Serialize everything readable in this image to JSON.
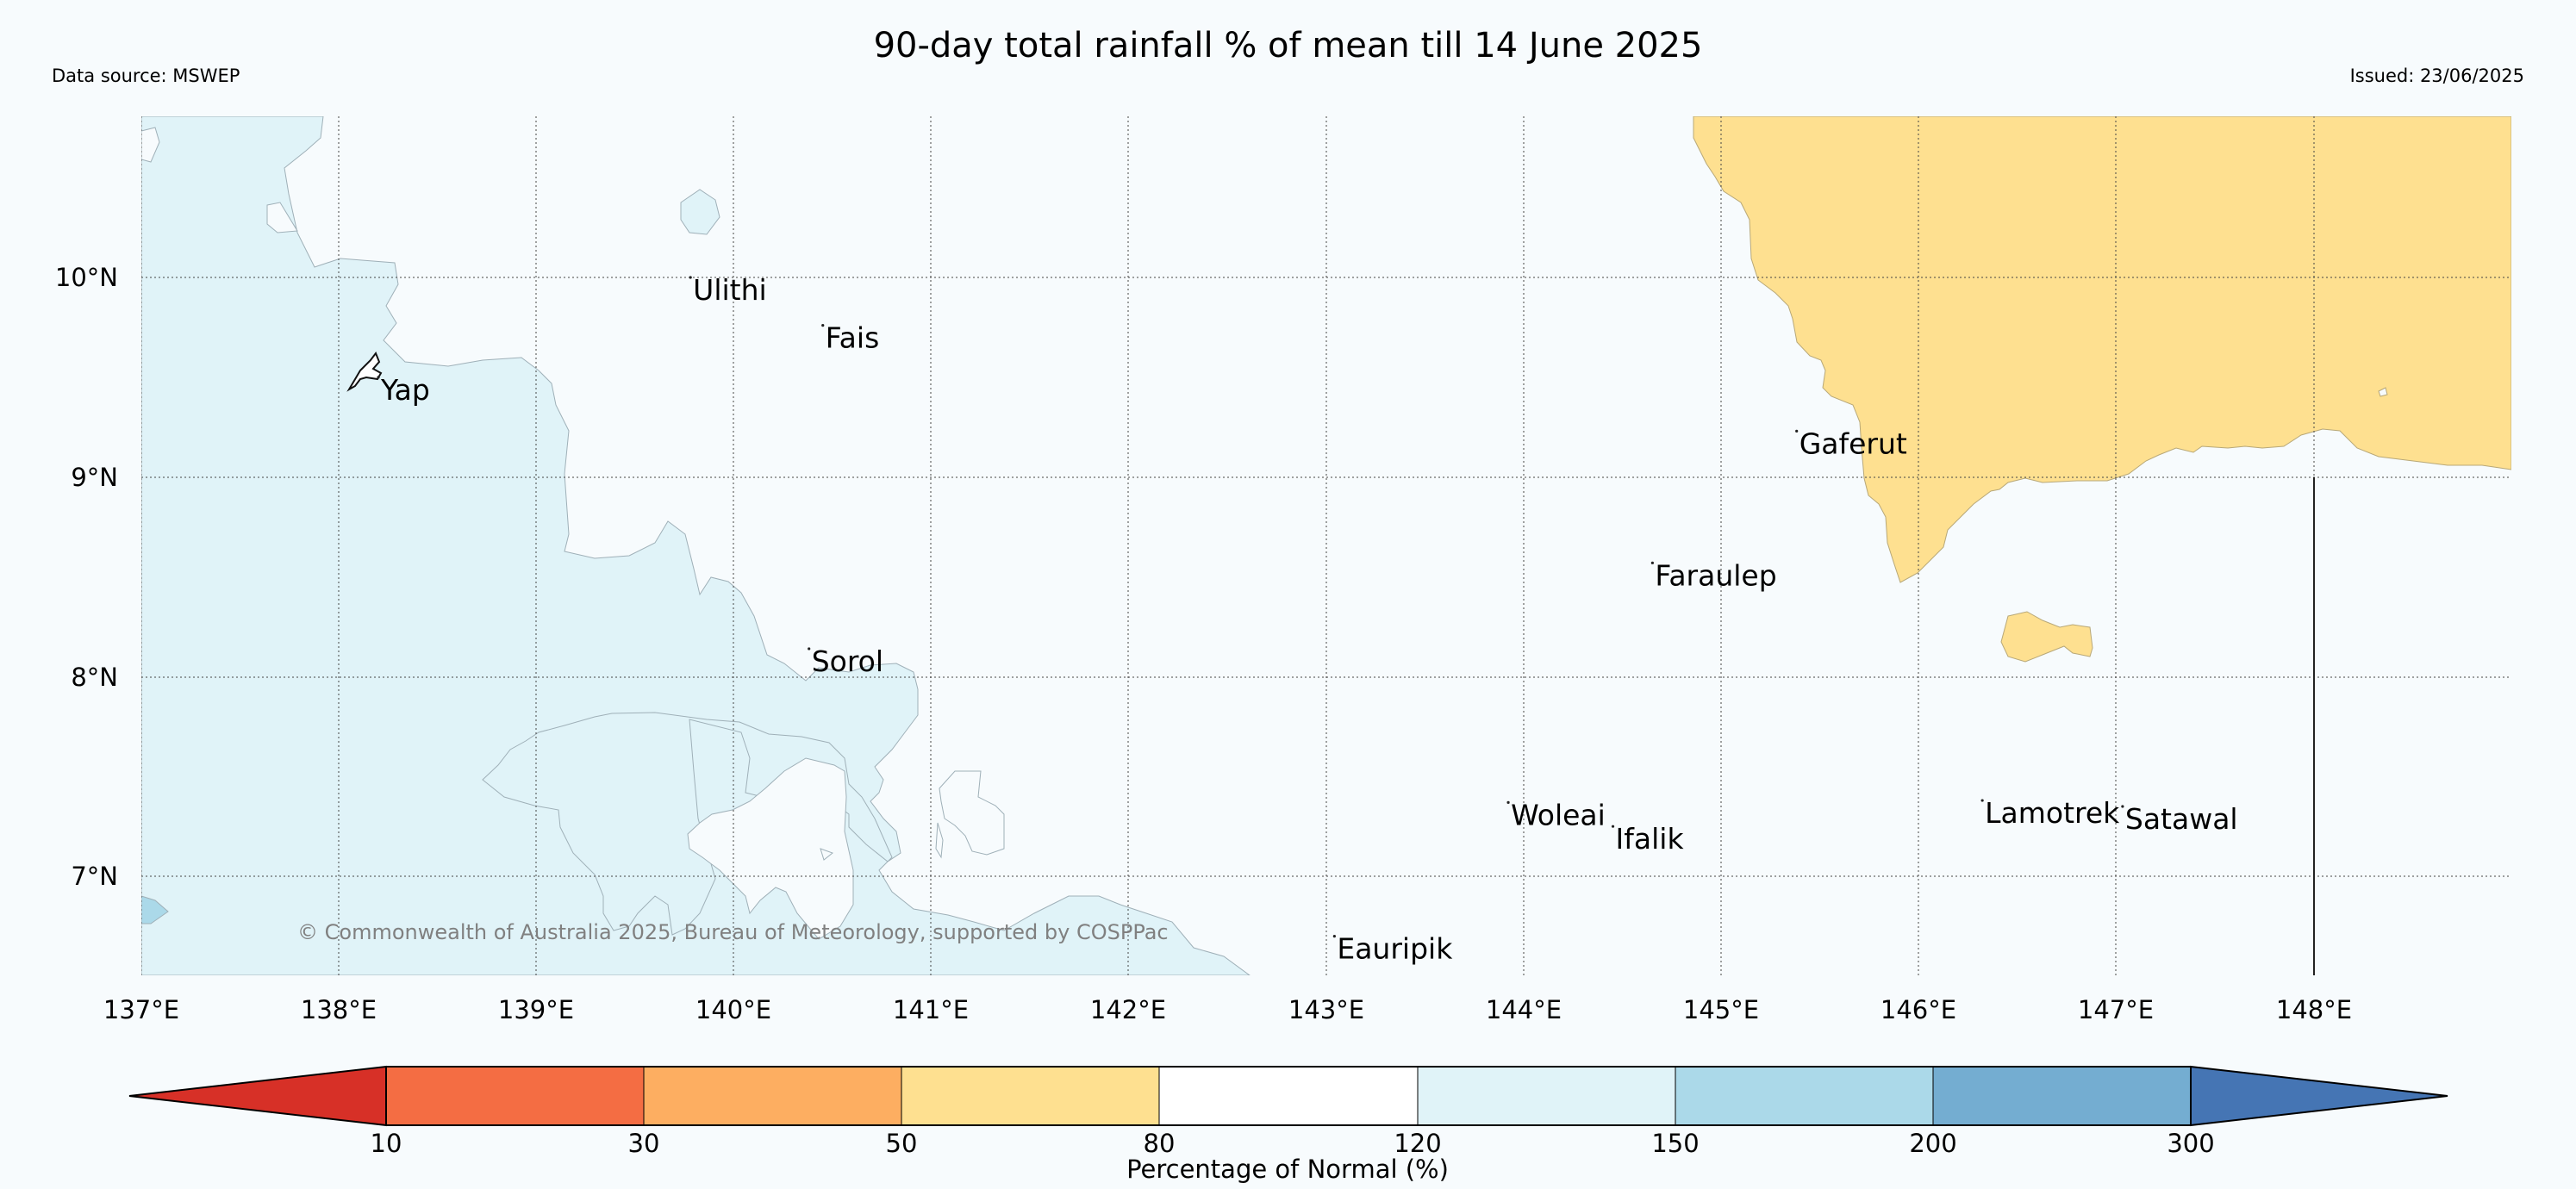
{
  "title": "90-day total rainfall % of mean till 14 June 2025",
  "data_source": "Data source: MSWEP",
  "issued": "Issued: 23/06/2025",
  "copyright": "© Commonwealth of Australia 2025, Bureau of Meteorology, supported by COSPPac",
  "lon_ticks": [
    "137°E",
    "138°E",
    "139°E",
    "140°E",
    "141°E",
    "142°E",
    "143°E",
    "144°E",
    "145°E",
    "146°E",
    "147°E",
    "148°E"
  ],
  "lat_ticks": [
    "10°N",
    "9°N",
    "8°N",
    "7°N"
  ],
  "places": [
    {
      "name": "Yap",
      "lon": 138.2,
      "lat": 9.5
    },
    {
      "name": "Ulithi",
      "lon": 139.78,
      "lat": 10.0
    },
    {
      "name": "Fais",
      "lon": 140.45,
      "lat": 9.76
    },
    {
      "name": "Gaferut",
      "lon": 145.38,
      "lat": 9.23
    },
    {
      "name": "Faraulep",
      "lon": 144.65,
      "lat": 8.57
    },
    {
      "name": "Sorol",
      "lon": 140.38,
      "lat": 8.14
    },
    {
      "name": "Woleai",
      "lon": 143.92,
      "lat": 7.37
    },
    {
      "name": "Ifalik",
      "lon": 144.45,
      "lat": 7.25
    },
    {
      "name": "Lamotrek",
      "lon": 146.32,
      "lat": 7.38
    },
    {
      "name": "Satawal",
      "lon": 147.03,
      "lat": 7.35
    },
    {
      "name": "Eauripik",
      "lon": 143.04,
      "lat": 6.7
    }
  ],
  "colorbar": {
    "label": "Percentage of Normal (%)",
    "tick_labels": [
      "10",
      "30",
      "50",
      "80",
      "120",
      "150",
      "200",
      "300"
    ],
    "colors": [
      "#d73027",
      "#f46d43",
      "#fdae61",
      "#fee090",
      "#ffffff",
      "#e0f3f8",
      "#abd9e9",
      "#74add1",
      "#4575b4"
    ]
  }
}
